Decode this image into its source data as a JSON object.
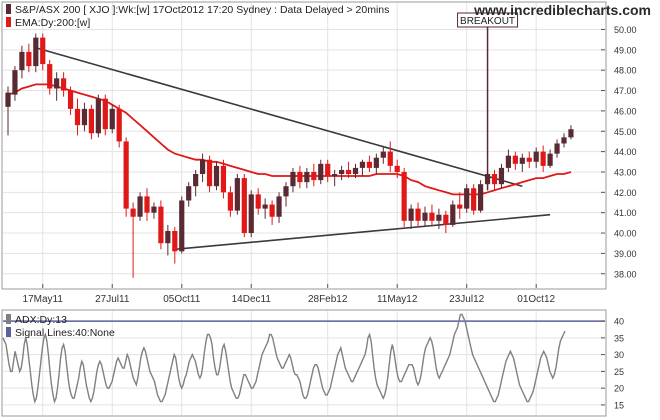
{
  "header": {
    "title": "S&P/ASX 200 [ XJO ]:Wk:[w]  17Oct2012 17:20  Sydney : Data Delayed > 20mins",
    "watermark": "www.incrediblecharts.com"
  },
  "colors": {
    "up": "#5a2a33",
    "down": "#e01818",
    "ema": "#e01818",
    "trendline": "#3a3a3a",
    "adx": "#808080",
    "signal": "#5a5fa0",
    "grid": "#e3e3e3",
    "axis": "#555555"
  },
  "chart_data": [
    {
      "type": "candlestick",
      "name": "price-panel",
      "legend": [
        {
          "label": "S&P/ASX 200 [ XJO ]:Wk:[w]  17Oct2012 17:20  Sydney : Data Delayed > 20mins",
          "swatch": "#5a2a33"
        },
        {
          "label": "EMA:Dy:200:[w]",
          "swatch": "#e01818"
        }
      ],
      "y_ticks": [
        38,
        39,
        40,
        41,
        42,
        43,
        44,
        45,
        46,
        47,
        48,
        49,
        50
      ],
      "y_tick_labels": [
        "38.00",
        "39.00",
        "40.00",
        "41.00",
        "42.00",
        "43.00",
        "44.00",
        "45.00",
        "46.00",
        "47.00",
        "48.00",
        "49.00",
        "50.00"
      ],
      "ylim": [
        37.3,
        51.3
      ],
      "x_ticks": [
        {
          "label": "17May11",
          "index": 5
        },
        {
          "label": "27Jul11",
          "index": 15
        },
        {
          "label": "05Oct11",
          "index": 25
        },
        {
          "label": "14Dec11",
          "index": 35
        },
        {
          "label": "28Feb12",
          "index": 46
        },
        {
          "label": "11May12",
          "index": 56
        },
        {
          "label": "23Jul12",
          "index": 66
        },
        {
          "label": "01Oct12",
          "index": 76
        }
      ],
      "candles": [
        [
          46.2,
          47.2,
          44.8,
          46.9
        ],
        [
          46.8,
          48.2,
          46.5,
          48.0
        ],
        [
          48.0,
          49.2,
          47.6,
          48.9
        ],
        [
          48.9,
          49.3,
          47.9,
          48.2
        ],
        [
          48.2,
          49.8,
          47.9,
          49.6
        ],
        [
          49.6,
          49.8,
          48.0,
          48.3
        ],
        [
          48.3,
          48.5,
          46.8,
          47.1
        ],
        [
          47.1,
          47.9,
          46.5,
          47.6
        ],
        [
          47.6,
          47.9,
          46.7,
          47.0
        ],
        [
          47.0,
          47.2,
          45.8,
          46.1
        ],
        [
          46.1,
          46.6,
          44.8,
          45.3
        ],
        [
          45.3,
          46.4,
          45.0,
          46.1
        ],
        [
          46.1,
          46.3,
          44.6,
          44.9
        ],
        [
          44.9,
          46.8,
          44.7,
          46.6
        ],
        [
          46.6,
          46.8,
          44.8,
          45.1
        ],
        [
          45.1,
          46.3,
          44.9,
          46.1
        ],
        [
          46.1,
          46.3,
          44.2,
          44.5
        ],
        [
          44.5,
          44.7,
          40.8,
          41.2
        ],
        [
          41.2,
          41.5,
          37.8,
          40.8
        ],
        [
          40.8,
          42.0,
          40.6,
          41.8
        ],
        [
          41.8,
          42.2,
          40.6,
          41.0
        ],
        [
          41.0,
          41.5,
          40.7,
          41.3
        ],
        [
          41.3,
          41.6,
          39.2,
          39.5
        ],
        [
          39.5,
          40.4,
          38.9,
          40.1
        ],
        [
          40.1,
          40.3,
          38.5,
          39.1
        ],
        [
          39.1,
          41.8,
          39.0,
          41.6
        ],
        [
          41.6,
          42.5,
          41.3,
          42.3
        ],
        [
          42.3,
          43.1,
          41.8,
          42.9
        ],
        [
          42.9,
          43.9,
          42.5,
          43.6
        ],
        [
          43.6,
          43.8,
          42.0,
          42.3
        ],
        [
          42.3,
          43.5,
          42.1,
          43.3
        ],
        [
          43.3,
          43.6,
          41.7,
          42.0
        ],
        [
          42.0,
          42.3,
          40.8,
          41.1
        ],
        [
          41.1,
          42.9,
          40.9,
          42.7
        ],
        [
          42.7,
          42.9,
          39.8,
          40.0
        ],
        [
          40.0,
          42.1,
          39.8,
          41.9
        ],
        [
          41.9,
          42.2,
          40.9,
          41.2
        ],
        [
          41.2,
          41.7,
          40.7,
          41.4
        ],
        [
          41.4,
          41.6,
          40.4,
          40.8
        ],
        [
          40.8,
          42.0,
          40.5,
          41.8
        ],
        [
          41.8,
          42.5,
          41.3,
          42.3
        ],
        [
          42.3,
          43.2,
          42.0,
          43.0
        ],
        [
          43.0,
          43.3,
          42.2,
          42.5
        ],
        [
          42.5,
          43.2,
          42.2,
          43.0
        ],
        [
          43.0,
          43.4,
          42.3,
          42.6
        ],
        [
          42.6,
          43.6,
          42.4,
          43.4
        ],
        [
          43.4,
          43.6,
          42.5,
          42.8
        ],
        [
          42.8,
          43.1,
          42.3,
          42.9
        ],
        [
          42.9,
          43.3,
          42.6,
          43.1
        ],
        [
          43.1,
          43.5,
          42.7,
          42.9
        ],
        [
          42.9,
          43.4,
          42.7,
          43.2
        ],
        [
          43.2,
          43.6,
          42.8,
          43.5
        ],
        [
          43.5,
          43.8,
          43.0,
          43.2
        ],
        [
          43.2,
          43.9,
          42.9,
          43.7
        ],
        [
          43.7,
          44.2,
          43.4,
          44.0
        ],
        [
          44.0,
          44.5,
          43.0,
          43.3
        ],
        [
          43.3,
          43.6,
          42.7,
          43.0
        ],
        [
          43.0,
          43.2,
          40.3,
          40.6
        ],
        [
          40.6,
          41.4,
          40.2,
          41.2
        ],
        [
          41.2,
          41.5,
          40.3,
          40.6
        ],
        [
          40.6,
          41.3,
          40.3,
          41.0
        ],
        [
          41.0,
          41.4,
          40.4,
          40.6
        ],
        [
          40.6,
          41.2,
          40.2,
          40.9
        ],
        [
          40.9,
          41.1,
          40.0,
          40.4
        ],
        [
          40.4,
          41.6,
          40.3,
          41.4
        ],
        [
          41.4,
          42.0,
          40.7,
          41.2
        ],
        [
          41.2,
          42.4,
          41.0,
          42.2
        ],
        [
          42.2,
          42.4,
          40.9,
          41.1
        ],
        [
          41.1,
          42.6,
          41.0,
          42.4
        ],
        [
          42.4,
          43.1,
          42.1,
          42.9
        ],
        [
          42.9,
          43.1,
          42.1,
          42.4
        ],
        [
          42.4,
          43.4,
          42.2,
          43.2
        ],
        [
          43.2,
          44.1,
          43.0,
          43.8
        ],
        [
          43.8,
          44.0,
          43.1,
          43.4
        ],
        [
          43.4,
          43.9,
          43.0,
          43.7
        ],
        [
          43.7,
          44.0,
          43.2,
          43.5
        ],
        [
          43.5,
          44.2,
          43.2,
          44.0
        ],
        [
          44.0,
          44.3,
          43.0,
          43.3
        ],
        [
          43.3,
          44.1,
          43.2,
          43.9
        ],
        [
          43.9,
          44.6,
          43.7,
          44.4
        ],
        [
          44.4,
          44.9,
          44.2,
          44.7
        ],
        [
          44.7,
          45.3,
          44.6,
          45.1
        ]
      ],
      "ema": [
        46.8,
        46.9,
        47.1,
        47.2,
        47.3,
        47.3,
        47.3,
        47.2,
        47.1,
        47.0,
        46.9,
        46.8,
        46.7,
        46.6,
        46.5,
        46.3,
        46.1,
        45.9,
        45.6,
        45.3,
        45.0,
        44.7,
        44.4,
        44.1,
        43.9,
        43.8,
        43.7,
        43.6,
        43.6,
        43.5,
        43.5,
        43.4,
        43.3,
        43.2,
        43.1,
        43.0,
        42.9,
        42.9,
        42.8,
        42.8,
        42.8,
        42.8,
        42.8,
        42.8,
        42.8,
        42.8,
        42.8,
        42.8,
        42.8,
        42.8,
        42.8,
        42.8,
        42.8,
        42.9,
        42.9,
        42.9,
        42.9,
        42.8,
        42.6,
        42.5,
        42.3,
        42.2,
        42.1,
        42.0,
        41.9,
        41.9,
        41.9,
        41.9,
        41.9,
        42.0,
        42.1,
        42.2,
        42.3,
        42.4,
        42.5,
        42.6,
        42.7,
        42.7,
        42.8,
        42.9,
        42.9,
        43.0
      ],
      "trendlines": [
        {
          "from": [
            4,
            49.1
          ],
          "to": [
            74,
            42.3
          ]
        },
        {
          "from": [
            24,
            39.2
          ],
          "to": [
            78,
            40.9
          ]
        }
      ],
      "annotations": [
        {
          "label": "BREAKOUT",
          "index": 69
        }
      ]
    },
    {
      "type": "line",
      "name": "adx-panel",
      "legend": [
        {
          "label": "ADX:Dy:13",
          "swatch": "#808080"
        },
        {
          "label": "Signal Lines:40:None",
          "swatch": "#5a5fa0"
        }
      ],
      "y_ticks": [
        15,
        20,
        25,
        30,
        35,
        40
      ],
      "y_tick_labels": [
        "15",
        "20",
        "25",
        "30",
        "35",
        "40"
      ],
      "ylim": [
        12,
        43
      ],
      "signal_level": 40,
      "series": [
        {
          "values": [
            35,
            34,
            33,
            30,
            27,
            25,
            25,
            28,
            31,
            29,
            27,
            25,
            26,
            29,
            33,
            35,
            33,
            29,
            25,
            21,
            18,
            16,
            17,
            20,
            24,
            28,
            32,
            35,
            36,
            34,
            30,
            25,
            21,
            18,
            16,
            17,
            20,
            24,
            29,
            32,
            33,
            31,
            27,
            23,
            20,
            18,
            17,
            17,
            19,
            21,
            23,
            26,
            28,
            27,
            24,
            21,
            19,
            17,
            16,
            17,
            19,
            22,
            25,
            27,
            28,
            27,
            25,
            23,
            21,
            20,
            20,
            21,
            22,
            24,
            26,
            28,
            29,
            28,
            27,
            26,
            26,
            28,
            30,
            29,
            27,
            25,
            23,
            22,
            21,
            23,
            26,
            29,
            31,
            32,
            31,
            29,
            27,
            25,
            24,
            23,
            22,
            20,
            18,
            17,
            16,
            16,
            17,
            18,
            20,
            22,
            24,
            26,
            28,
            30,
            29,
            26,
            23,
            21,
            20,
            21,
            23,
            24,
            26,
            28,
            29,
            30,
            29,
            28,
            26,
            24,
            23,
            24,
            27,
            31,
            34,
            36,
            36,
            35,
            33,
            29,
            26,
            24,
            24,
            26,
            29,
            32,
            33,
            31,
            28,
            25,
            22,
            20,
            19,
            18,
            17,
            17,
            18,
            20,
            22,
            24,
            24,
            23,
            22,
            21,
            20,
            20,
            21,
            22,
            24,
            26,
            28,
            30,
            31,
            32,
            33,
            34,
            36,
            36,
            35,
            33,
            31,
            29,
            28,
            27,
            26,
            26,
            27,
            28,
            29,
            30,
            29,
            27,
            25,
            24,
            24,
            23,
            22,
            20,
            18,
            17,
            17,
            18,
            20,
            22,
            24,
            26,
            27,
            27,
            26,
            24,
            22,
            20,
            19,
            18,
            18,
            19,
            20,
            22,
            24,
            26,
            28,
            30,
            31,
            32,
            30,
            28,
            26,
            25,
            24,
            23,
            22,
            22,
            23,
            24,
            25,
            26,
            27,
            28,
            29,
            30,
            32,
            35,
            36,
            34,
            30,
            26,
            23,
            21,
            20,
            19,
            18,
            17,
            18,
            20,
            23,
            27,
            31,
            33,
            31,
            28,
            25,
            23,
            22,
            22,
            23,
            24,
            25,
            26,
            27,
            27,
            27,
            26,
            24,
            22,
            21,
            22,
            24,
            27,
            30,
            32,
            33,
            34,
            35,
            34,
            32,
            29,
            26,
            24,
            23,
            24,
            25,
            26,
            27,
            28,
            29,
            30,
            32,
            34,
            36,
            37,
            38,
            40,
            42,
            42,
            41,
            40,
            38,
            36,
            34,
            32,
            30,
            29,
            28,
            27,
            26,
            25,
            24,
            23,
            22,
            21,
            20,
            19,
            18,
            17,
            16,
            16,
            17,
            18,
            20,
            22,
            24,
            26,
            28,
            29,
            30,
            31,
            30,
            29,
            27,
            25,
            23,
            21,
            20,
            19,
            18,
            17,
            16,
            16,
            17,
            18,
            19,
            21,
            23,
            25,
            27,
            29,
            30,
            31,
            30,
            29,
            27,
            25,
            24,
            23,
            24,
            26,
            29,
            32,
            34,
            35,
            36,
            37
          ]
        }
      ]
    }
  ]
}
